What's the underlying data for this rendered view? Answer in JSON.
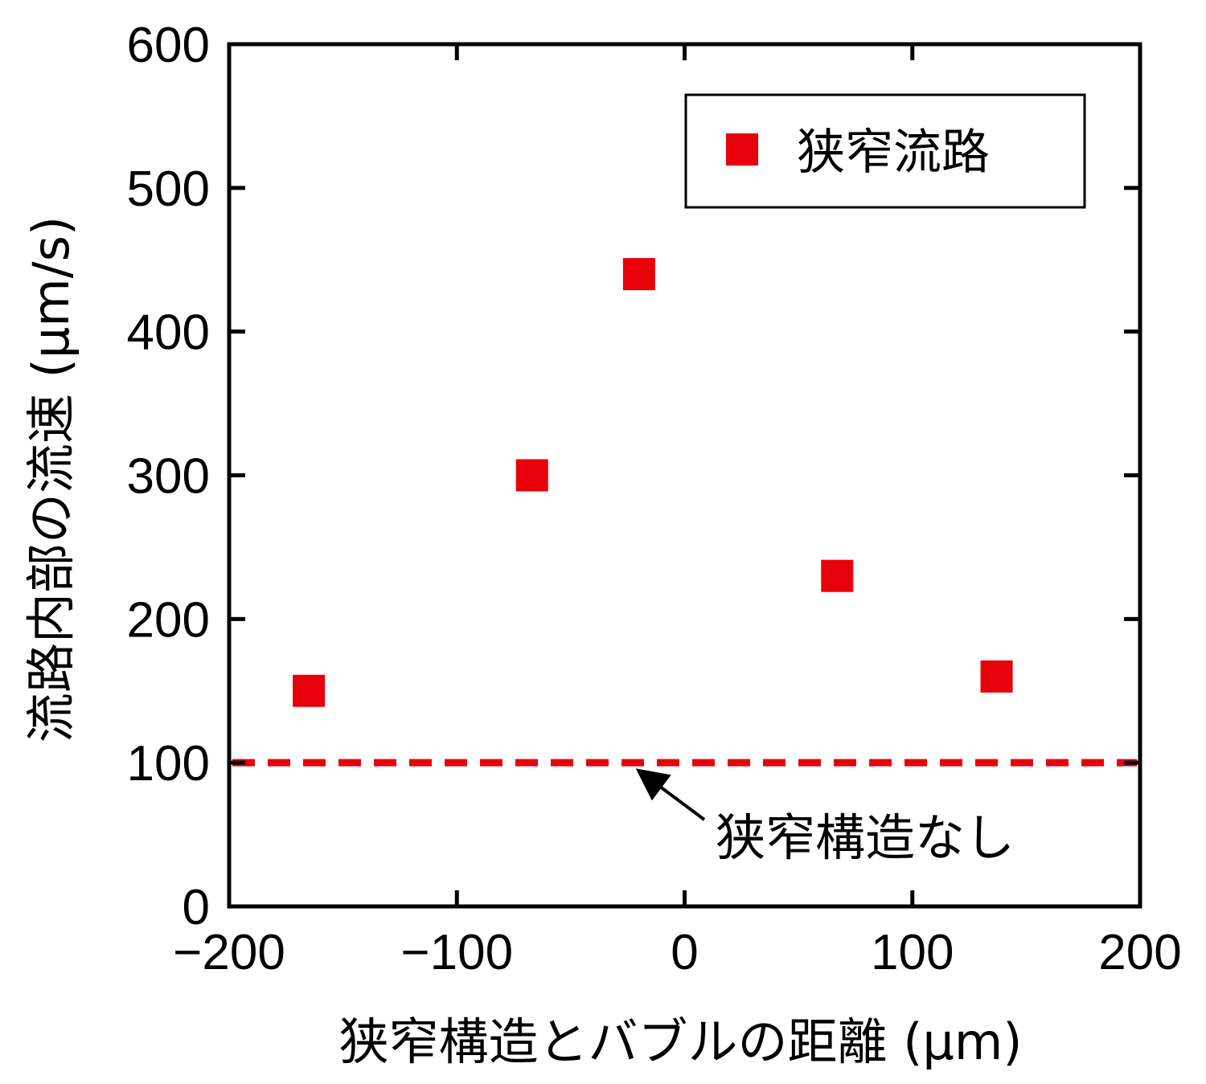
{
  "chart_data": {
    "type": "scatter",
    "xlabel": "狭窄構造とバブルの距離 (μm)",
    "ylabel": "流路内部の流速 (μm/s)",
    "xlim": [
      -200,
      200
    ],
    "ylim": [
      0,
      600
    ],
    "xticks": [
      -200,
      -100,
      0,
      100,
      200
    ],
    "xtick_labels": [
      "−200",
      "−100",
      "0",
      "100",
      "200"
    ],
    "yticks": [
      0,
      100,
      200,
      300,
      400,
      500,
      600
    ],
    "ytick_labels": [
      "0",
      "100",
      "200",
      "300",
      "400",
      "500",
      "600"
    ],
    "grid": false,
    "legend_position": "top-right",
    "series": [
      {
        "name": "狭窄流路",
        "marker": "square",
        "color": "#e8000b",
        "points": [
          {
            "x": -165,
            "y": 150
          },
          {
            "x": -67,
            "y": 300
          },
          {
            "x": -20,
            "y": 440
          },
          {
            "x": 67,
            "y": 230
          },
          {
            "x": 137,
            "y": 160
          }
        ]
      }
    ],
    "reference_lines": [
      {
        "type": "horizontal",
        "y": 100,
        "style": "dashed",
        "color": "#e8000b"
      }
    ],
    "annotations": [
      {
        "text": "狭窄構造なし",
        "arrow_to": {
          "x": -22,
          "y": 100
        }
      }
    ]
  }
}
